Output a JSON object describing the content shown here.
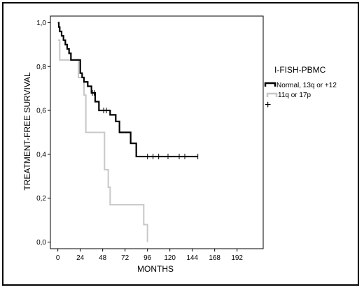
{
  "chart_data": {
    "type": "line",
    "xlabel": "MONTHS",
    "ylabel": "TREATMENT-FREE SURVIVAL",
    "xlim": [
      -8,
      220
    ],
    "ylim": [
      -0.03,
      1.03
    ],
    "x_ticks": [
      0,
      24,
      48,
      72,
      96,
      120,
      144,
      168,
      192
    ],
    "y_ticks": [
      0.0,
      0.2,
      0.4,
      0.6,
      0.8,
      1.0
    ],
    "y_tick_labels": [
      "0,0",
      "0,2",
      "0,4",
      "0,6",
      "0,8",
      "1,0"
    ],
    "grid": false,
    "legend": {
      "title": "I-FISH-PBMC",
      "placement": "right",
      "censored_symbol": "+"
    },
    "series": [
      {
        "name": "Normal, 13q or +12",
        "color": "#000000",
        "x": [
          0,
          1,
          2,
          4,
          6,
          8,
          10,
          12,
          14,
          24,
          26,
          28,
          32,
          36,
          40,
          44,
          56,
          62,
          66,
          78,
          84,
          88,
          150
        ],
        "y": [
          1.0,
          0.98,
          0.96,
          0.94,
          0.92,
          0.9,
          0.88,
          0.86,
          0.83,
          0.77,
          0.75,
          0.73,
          0.71,
          0.68,
          0.64,
          0.6,
          0.58,
          0.55,
          0.5,
          0.45,
          0.39,
          0.39,
          0.39
        ],
        "censored_x": [
          37,
          39,
          49,
          52,
          96,
          102,
          108,
          118,
          130,
          136,
          150
        ]
      },
      {
        "name": "11q or 17p",
        "color": "#c8c8c8",
        "x": [
          0,
          2,
          22,
          28,
          30,
          50,
          54,
          56,
          92,
          96,
          96
        ],
        "y": [
          0.92,
          0.83,
          0.75,
          0.67,
          0.5,
          0.33,
          0.25,
          0.17,
          0.08,
          0.0,
          0.0
        ],
        "censored_x": []
      }
    ]
  }
}
